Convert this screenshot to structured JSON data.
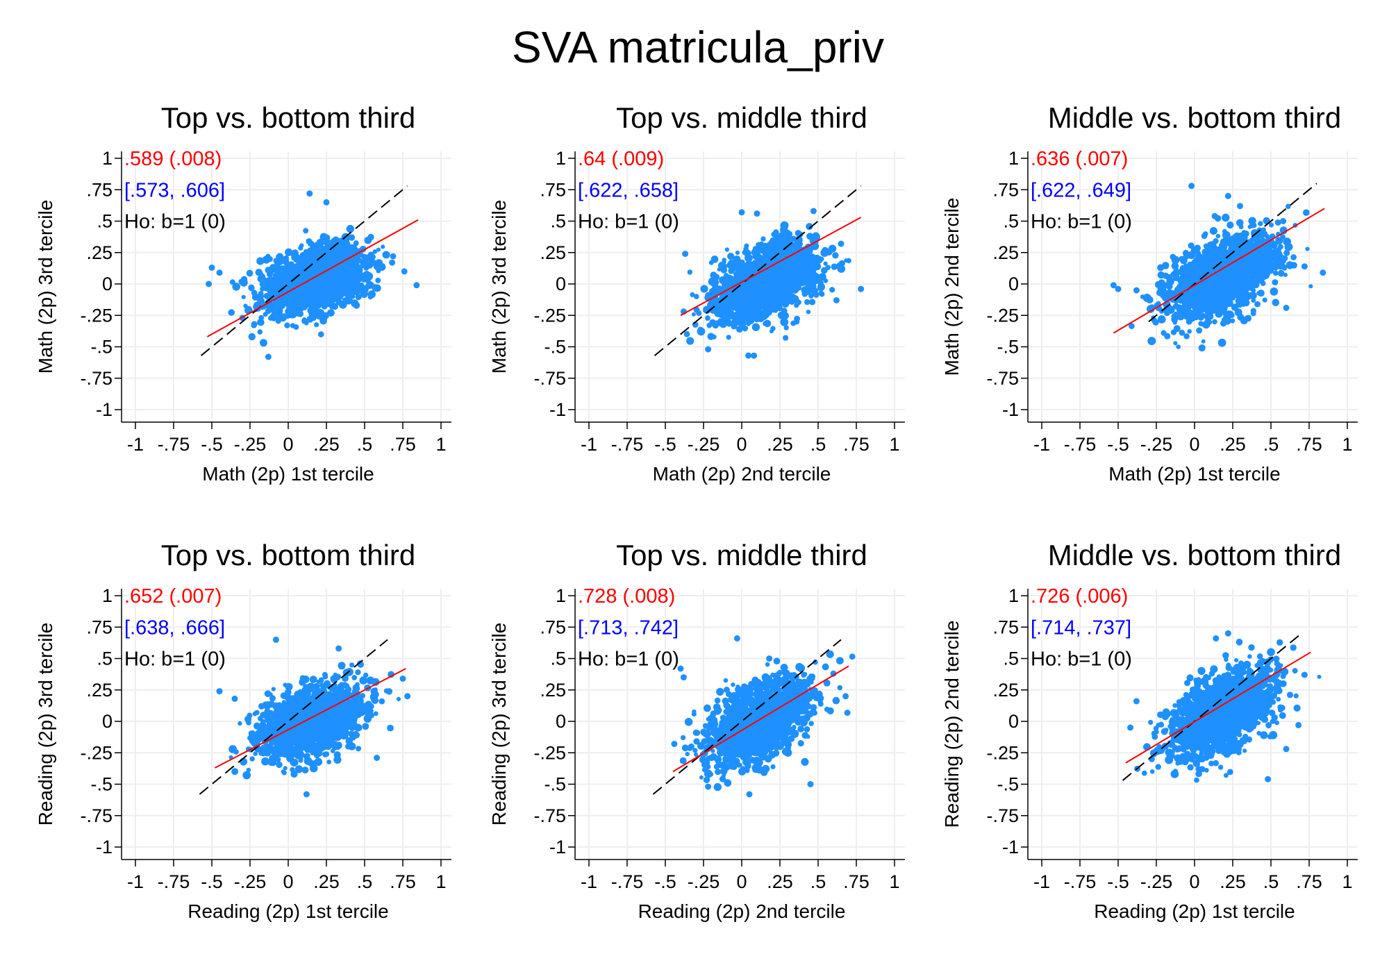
{
  "figure": {
    "title": "SVA matricula_priv"
  },
  "colors": {
    "scatter": "#1e90ff",
    "fit_line": "#ff0000",
    "diagonal": "#000000",
    "estimate_text": "#ff0000",
    "ci_text": "#0000ff",
    "test_text": "#000000",
    "grid": "#eeeeee"
  },
  "chart_data": [
    {
      "type": "scatter",
      "title": "Top vs. bottom third",
      "xlabel": "Math (2p) 1st tercile",
      "ylabel": "Math (2p) 3rd tercile",
      "xlim": [
        -1,
        1
      ],
      "ylim": [
        -1,
        1
      ],
      "xticks": [
        "-1",
        "-.75",
        "-.5",
        "-.25",
        "0",
        ".25",
        ".5",
        ".75",
        "1"
      ],
      "yticks": [
        "1",
        ".75",
        ".5",
        ".25",
        "0",
        "-.25",
        "-.5",
        "-.75",
        "-1"
      ],
      "grid": true,
      "annotations": {
        "estimate": ".589 (.008)",
        "ci": "[.573, .606]",
        "test": "Ho: b=1 (0)"
      },
      "fit_line": {
        "x": [
          -0.53,
          0.85
        ],
        "y": [
          -0.42,
          0.51
        ]
      },
      "diagonal": {
        "x": [
          -0.57,
          0.78
        ],
        "y": [
          -0.57,
          0.78
        ]
      },
      "cloud": {
        "x_center": 0.17,
        "y_center": 0.02,
        "x_sd": 0.17,
        "y_sd": 0.13,
        "slope": 0.35
      },
      "outliers": [
        [
          -0.5,
          0.13
        ],
        [
          -0.45,
          0.09
        ],
        [
          -0.52,
          0.0
        ],
        [
          0.84,
          -0.01
        ],
        [
          0.14,
          0.72
        ],
        [
          -0.13,
          -0.58
        ],
        [
          0.68,
          0.17
        ],
        [
          -0.3,
          -0.27
        ],
        [
          0.25,
          0.65
        ],
        [
          0.76,
          0.1
        ]
      ]
    },
    {
      "type": "scatter",
      "title": "Top vs. middle third",
      "xlabel": "Math (2p) 2nd tercile",
      "ylabel": "Math (2p) 3rd tercile",
      "xlim": [
        -1,
        1
      ],
      "ylim": [
        -1,
        1
      ],
      "xticks": [
        "-1",
        "-.75",
        "-.5",
        "-.25",
        "0",
        ".25",
        ".5",
        ".75",
        "1"
      ],
      "yticks": [
        "1",
        ".75",
        ".5",
        ".25",
        "0",
        "-.25",
        "-.5",
        "-.75",
        "-1"
      ],
      "grid": true,
      "annotations": {
        "estimate": ".64 (.009)",
        "ci": "[.622, .658]",
        "test": "Ho: b=1 (0)"
      },
      "fit_line": {
        "x": [
          -0.4,
          0.78
        ],
        "y": [
          -0.25,
          0.53
        ]
      },
      "diagonal": {
        "x": [
          -0.57,
          0.78
        ],
        "y": [
          -0.57,
          0.78
        ]
      },
      "cloud": {
        "x_center": 0.15,
        "y_center": 0.02,
        "x_sd": 0.17,
        "y_sd": 0.14,
        "slope": 0.4
      },
      "outliers": [
        [
          -0.38,
          -0.22
        ],
        [
          -0.22,
          -0.52
        ],
        [
          0.78,
          -0.04
        ],
        [
          0.62,
          -0.13
        ],
        [
          0.1,
          0.56
        ],
        [
          0.0,
          0.57
        ],
        [
          0.47,
          0.58
        ],
        [
          0.08,
          -0.57
        ],
        [
          -0.37,
          0.24
        ],
        [
          0.65,
          0.32
        ]
      ]
    },
    {
      "type": "scatter",
      "title": "Middle vs. bottom third",
      "xlabel": "Math (2p) 1st tercile",
      "ylabel": "Math (2p) 2nd tercile",
      "xlim": [
        -1,
        1
      ],
      "ylim": [
        -1,
        1
      ],
      "xticks": [
        "-1",
        "-.75",
        "-.5",
        "-.25",
        "0",
        ".25",
        ".5",
        ".75",
        "1"
      ],
      "yticks": [
        "1",
        ".75",
        ".5",
        ".25",
        "0",
        "-.25",
        "-.5",
        "-.75",
        "-1"
      ],
      "grid": true,
      "annotations": {
        "estimate": ".636 (.007)",
        "ci": "[.622, .649]",
        "test": "Ho: b=1 (0)"
      },
      "fit_line": {
        "x": [
          -0.53,
          0.85
        ],
        "y": [
          -0.39,
          0.6
        ]
      },
      "diagonal": {
        "x": [
          -0.3,
          0.8
        ],
        "y": [
          -0.3,
          0.8
        ]
      },
      "cloud": {
        "x_center": 0.18,
        "y_center": 0.06,
        "x_sd": 0.18,
        "y_sd": 0.15,
        "slope": 0.48
      },
      "outliers": [
        [
          -0.53,
          -0.01
        ],
        [
          -0.5,
          -0.04
        ],
        [
          -0.38,
          -0.05
        ],
        [
          0.84,
          0.09
        ],
        [
          0.72,
          0.14
        ],
        [
          -0.02,
          0.78
        ],
        [
          0.6,
          -0.19
        ],
        [
          0.03,
          -0.37
        ],
        [
          0.58,
          0.5
        ],
        [
          0.22,
          0.7
        ]
      ]
    },
    {
      "type": "scatter",
      "title": "Top vs. bottom third",
      "xlabel": "Reading (2p) 1st tercile",
      "ylabel": "Reading (2p) 3rd tercile",
      "xlim": [
        -1,
        1
      ],
      "ylim": [
        -1,
        1
      ],
      "xticks": [
        "-1",
        "-.75",
        "-.5",
        "-.25",
        "0",
        ".25",
        ".5",
        ".75",
        "1"
      ],
      "yticks": [
        "1",
        ".75",
        ".5",
        ".25",
        "0",
        "-.25",
        "-.5",
        "-.75",
        "-1"
      ],
      "grid": true,
      "annotations": {
        "estimate": ".652 (.007)",
        "ci": "[.638, .666]",
        "test": "Ho: b=1 (0)"
      },
      "fit_line": {
        "x": [
          -0.48,
          0.77
        ],
        "y": [
          -0.37,
          0.42
        ]
      },
      "diagonal": {
        "x": [
          -0.58,
          0.65
        ],
        "y": [
          -0.58,
          0.65
        ]
      },
      "cloud": {
        "x_center": 0.15,
        "y_center": 0.0,
        "x_sd": 0.17,
        "y_sd": 0.13,
        "slope": 0.4
      },
      "outliers": [
        [
          -0.45,
          0.24
        ],
        [
          -0.35,
          0.18
        ],
        [
          -0.08,
          0.65
        ],
        [
          0.78,
          0.2
        ],
        [
          0.75,
          0.34
        ],
        [
          0.12,
          -0.58
        ],
        [
          -0.24,
          -0.12
        ],
        [
          0.33,
          0.58
        ],
        [
          0.58,
          -0.29
        ],
        [
          0.47,
          0.46
        ]
      ]
    },
    {
      "type": "scatter",
      "title": "Top vs. middle third",
      "xlabel": "Reading (2p) 2nd tercile",
      "ylabel": "Reading (2p) 3rd tercile",
      "xlim": [
        -1,
        1
      ],
      "ylim": [
        -1,
        1
      ],
      "xticks": [
        "-1",
        "-.75",
        "-.5",
        "-.25",
        "0",
        ".25",
        ".5",
        ".75",
        "1"
      ],
      "yticks": [
        "1",
        ".75",
        ".5",
        ".25",
        "0",
        "-.25",
        "-.5",
        "-.75",
        "-1"
      ],
      "grid": true,
      "annotations": {
        "estimate": ".728 (.008)",
        "ci": "[.713, .742]",
        "test": "Ho: b=1 (0)"
      },
      "fit_line": {
        "x": [
          -0.45,
          0.7
        ],
        "y": [
          -0.4,
          0.44
        ]
      },
      "diagonal": {
        "x": [
          -0.58,
          0.65
        ],
        "y": [
          -0.58,
          0.65
        ]
      },
      "cloud": {
        "x_center": 0.12,
        "y_center": 0.0,
        "x_sd": 0.17,
        "y_sd": 0.14,
        "slope": 0.5
      },
      "outliers": [
        [
          -0.4,
          0.42
        ],
        [
          -0.38,
          0.35
        ],
        [
          -0.22,
          -0.52
        ],
        [
          0.05,
          -0.58
        ],
        [
          -0.03,
          0.66
        ],
        [
          0.68,
          0.2
        ],
        [
          0.18,
          0.5
        ],
        [
          -0.33,
          -0.2
        ],
        [
          0.6,
          0.38
        ],
        [
          0.45,
          -0.5
        ]
      ]
    },
    {
      "type": "scatter",
      "title": "Middle vs. bottom third",
      "xlabel": "Reading (2p) 1st tercile",
      "ylabel": "Reading (2p) 2nd tercile",
      "xlim": [
        -1,
        1
      ],
      "ylim": [
        -1,
        1
      ],
      "xticks": [
        "-1",
        "-.75",
        "-.5",
        "-.25",
        "0",
        ".25",
        ".5",
        ".75",
        "1"
      ],
      "yticks": [
        "1",
        ".75",
        ".5",
        ".25",
        "0",
        "-.25",
        "-.5",
        "-.75",
        "-1"
      ],
      "grid": true,
      "annotations": {
        "estimate": ".726 (.006)",
        "ci": "[.714, .737]",
        "test": "Ho: b=1 (0)"
      },
      "fit_line": {
        "x": [
          -0.45,
          0.76
        ],
        "y": [
          -0.33,
          0.55
        ]
      },
      "diagonal": {
        "x": [
          -0.47,
          0.69
        ],
        "y": [
          -0.47,
          0.69
        ]
      },
      "cloud": {
        "x_center": 0.18,
        "y_center": 0.07,
        "x_sd": 0.17,
        "y_sd": 0.15,
        "slope": 0.55
      },
      "outliers": [
        [
          -0.42,
          -0.05
        ],
        [
          -0.38,
          0.16
        ],
        [
          0.22,
          0.7
        ],
        [
          0.72,
          0.37
        ],
        [
          0.68,
          -0.03
        ],
        [
          0.48,
          -0.46
        ],
        [
          0.05,
          -0.38
        ],
        [
          0.6,
          -0.22
        ],
        [
          0.14,
          0.66
        ],
        [
          -0.28,
          -0.3
        ]
      ]
    }
  ]
}
